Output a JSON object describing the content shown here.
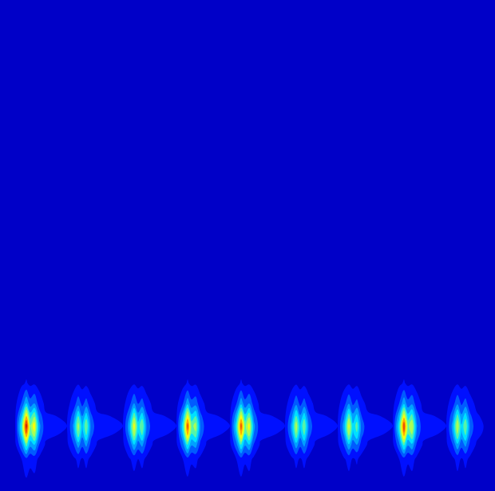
{
  "chart_data": {
    "type": "contour",
    "x": [
      0,
      19,
      27,
      33,
      38,
      43,
      49,
      57,
      84,
      92,
      98,
      103,
      108,
      114,
      122,
      154,
      162,
      168,
      173,
      178,
      184,
      192,
      221,
      229,
      235,
      240,
      245,
      251,
      259,
      288,
      296,
      302,
      307,
      312,
      318,
      326,
      357,
      365,
      371,
      376,
      381,
      387,
      395,
      423,
      431,
      437,
      442,
      447,
      453,
      461,
      492,
      500,
      506,
      511,
      516,
      522,
      530,
      559,
      567,
      573,
      578,
      583,
      589,
      597,
      620
    ],
    "y": [
      0,
      40,
      58,
      72,
      82,
      94,
      110,
      135,
      165,
      616
    ],
    "z": [
      [
        0,
        0,
        0,
        0,
        0,
        0,
        0,
        0,
        0,
        0,
        0,
        0,
        0,
        0,
        0,
        0,
        0,
        0,
        0,
        0,
        0,
        0,
        0,
        0,
        0,
        0,
        0,
        0,
        0,
        0,
        0,
        0,
        0,
        0,
        0,
        0,
        0,
        0,
        0,
        0,
        0,
        0,
        0,
        0,
        0,
        0,
        0,
        0,
        0,
        0,
        0,
        0,
        0,
        0,
        0,
        0,
        0,
        0,
        0,
        0,
        0,
        0,
        0,
        0,
        0
      ],
      [
        0,
        0.01,
        0.05,
        0.12,
        0.07,
        0.09,
        0.03,
        0.01,
        0.01,
        0.03,
        0.07,
        0.04,
        0.07,
        0.03,
        0.01,
        0.01,
        0.04,
        0.08,
        0.05,
        0.07,
        0.03,
        0.01,
        0.01,
        0.05,
        0.11,
        0.06,
        0.07,
        0.03,
        0.01,
        0.01,
        0.05,
        0.11,
        0.06,
        0.08,
        0.03,
        0.01,
        0.01,
        0.03,
        0.07,
        0.04,
        0.07,
        0.03,
        0.01,
        0.01,
        0.04,
        0.08,
        0.04,
        0.06,
        0.02,
        0.01,
        0.01,
        0.05,
        0.11,
        0.06,
        0.08,
        0.03,
        0.01,
        0.01,
        0.03,
        0.08,
        0.04,
        0.07,
        0.03,
        0.01,
        0
      ],
      [
        0,
        0.03,
        0.23,
        0.5,
        0.28,
        0.36,
        0.15,
        0.04,
        0.03,
        0.14,
        0.3,
        0.17,
        0.28,
        0.11,
        0.04,
        0.03,
        0.16,
        0.35,
        0.2,
        0.28,
        0.11,
        0.04,
        0.03,
        0.21,
        0.46,
        0.26,
        0.3,
        0.12,
        0.04,
        0.03,
        0.21,
        0.46,
        0.26,
        0.35,
        0.14,
        0.04,
        0.03,
        0.14,
        0.31,
        0.17,
        0.28,
        0.11,
        0.04,
        0.03,
        0.16,
        0.34,
        0.19,
        0.25,
        0.1,
        0.04,
        0.03,
        0.22,
        0.48,
        0.26,
        0.33,
        0.13,
        0.04,
        0.03,
        0.15,
        0.33,
        0.18,
        0.28,
        0.11,
        0.04,
        0
      ],
      [
        0,
        0.04,
        0.4,
        0.88,
        0.48,
        0.63,
        0.26,
        0.07,
        0.04,
        0.24,
        0.53,
        0.29,
        0.48,
        0.19,
        0.07,
        0.04,
        0.28,
        0.62,
        0.34,
        0.48,
        0.19,
        0.07,
        0.04,
        0.36,
        0.81,
        0.45,
        0.53,
        0.21,
        0.07,
        0.04,
        0.36,
        0.81,
        0.45,
        0.62,
        0.25,
        0.07,
        0.04,
        0.25,
        0.55,
        0.3,
        0.48,
        0.19,
        0.07,
        0.04,
        0.27,
        0.6,
        0.33,
        0.44,
        0.18,
        0.07,
        0.04,
        0.38,
        0.84,
        0.46,
        0.57,
        0.23,
        0.07,
        0.04,
        0.26,
        0.57,
        0.32,
        0.48,
        0.19,
        0.07,
        0
      ],
      [
        0,
        0.05,
        0.45,
        1.0,
        0.55,
        0.72,
        0.29,
        0.08,
        0.05,
        0.27,
        0.6,
        0.33,
        0.55,
        0.22,
        0.08,
        0.05,
        0.32,
        0.7,
        0.39,
        0.55,
        0.22,
        0.08,
        0.05,
        0.41,
        0.92,
        0.51,
        0.6,
        0.24,
        0.08,
        0.05,
        0.41,
        0.92,
        0.51,
        0.7,
        0.28,
        0.08,
        0.05,
        0.28,
        0.62,
        0.34,
        0.55,
        0.22,
        0.08,
        0.05,
        0.31,
        0.68,
        0.37,
        0.5,
        0.2,
        0.08,
        0.05,
        0.43,
        0.95,
        0.52,
        0.65,
        0.26,
        0.08,
        0.05,
        0.29,
        0.65,
        0.36,
        0.55,
        0.22,
        0.08,
        0
      ],
      [
        0,
        0.04,
        0.34,
        0.75,
        0.41,
        0.54,
        0.22,
        0.06,
        0.04,
        0.2,
        0.45,
        0.25,
        0.41,
        0.17,
        0.06,
        0.04,
        0.24,
        0.53,
        0.29,
        0.41,
        0.17,
        0.06,
        0.04,
        0.31,
        0.69,
        0.38,
        0.45,
        0.18,
        0.06,
        0.04,
        0.31,
        0.69,
        0.38,
        0.53,
        0.21,
        0.06,
        0.04,
        0.21,
        0.47,
        0.26,
        0.41,
        0.17,
        0.06,
        0.04,
        0.23,
        0.51,
        0.28,
        0.38,
        0.15,
        0.06,
        0.04,
        0.32,
        0.71,
        0.39,
        0.49,
        0.2,
        0.06,
        0.04,
        0.22,
        0.49,
        0.27,
        0.41,
        0.17,
        0.06,
        0
      ],
      [
        0,
        0.02,
        0.16,
        0.35,
        0.19,
        0.25,
        0.1,
        0.03,
        0.02,
        0.09,
        0.21,
        0.12,
        0.19,
        0.08,
        0.03,
        0.02,
        0.11,
        0.25,
        0.14,
        0.19,
        0.08,
        0.03,
        0.02,
        0.14,
        0.32,
        0.18,
        0.21,
        0.08,
        0.03,
        0.02,
        0.14,
        0.32,
        0.18,
        0.25,
        0.1,
        0.03,
        0.02,
        0.1,
        0.22,
        0.12,
        0.19,
        0.08,
        0.03,
        0.02,
        0.11,
        0.24,
        0.13,
        0.18,
        0.07,
        0.03,
        0.02,
        0.15,
        0.33,
        0.18,
        0.23,
        0.09,
        0.03,
        0.02,
        0.1,
        0.23,
        0.13,
        0.19,
        0.08,
        0.03,
        0
      ],
      [
        0,
        0,
        0.03,
        0.06,
        0.03,
        0.04,
        0.02,
        0,
        0,
        0.02,
        0.04,
        0.02,
        0.03,
        0.01,
        0,
        0,
        0.02,
        0.04,
        0.02,
        0.03,
        0.01,
        0,
        0,
        0.02,
        0.06,
        0.03,
        0.04,
        0.01,
        0,
        0,
        0.02,
        0.06,
        0.03,
        0.04,
        0.02,
        0,
        0,
        0.02,
        0.04,
        0.02,
        0.03,
        0.01,
        0,
        0,
        0.02,
        0.04,
        0.02,
        0.03,
        0.01,
        0,
        0,
        0.03,
        0.06,
        0.03,
        0.04,
        0.02,
        0,
        0,
        0.02,
        0.04,
        0.02,
        0.03,
        0.01,
        0,
        0
      ],
      [
        0,
        0,
        0,
        0,
        0,
        0,
        0,
        0,
        0,
        0,
        0,
        0,
        0,
        0,
        0,
        0,
        0,
        0,
        0,
        0,
        0,
        0,
        0,
        0,
        0,
        0,
        0,
        0,
        0,
        0,
        0,
        0,
        0,
        0,
        0,
        0,
        0,
        0,
        0,
        0,
        0,
        0,
        0,
        0,
        0,
        0,
        0,
        0,
        0,
        0,
        0,
        0,
        0,
        0,
        0,
        0,
        0,
        0,
        0,
        0,
        0,
        0,
        0,
        0,
        0
      ],
      [
        0,
        0,
        0,
        0,
        0,
        0,
        0,
        0,
        0,
        0,
        0,
        0,
        0,
        0,
        0,
        0,
        0,
        0,
        0,
        0,
        0,
        0,
        0,
        0,
        0,
        0,
        0,
        0,
        0,
        0,
        0,
        0,
        0,
        0,
        0,
        0,
        0,
        0,
        0,
        0,
        0,
        0,
        0,
        0,
        0,
        0,
        0,
        0,
        0,
        0,
        0,
        0,
        0,
        0,
        0,
        0,
        0,
        0,
        0,
        0,
        0,
        0,
        0,
        0,
        0
      ]
    ],
    "xlim": [
      0,
      620
    ],
    "ylim": [
      0,
      616
    ],
    "zlim": [
      0,
      1
    ],
    "tick_labels": false
  }
}
